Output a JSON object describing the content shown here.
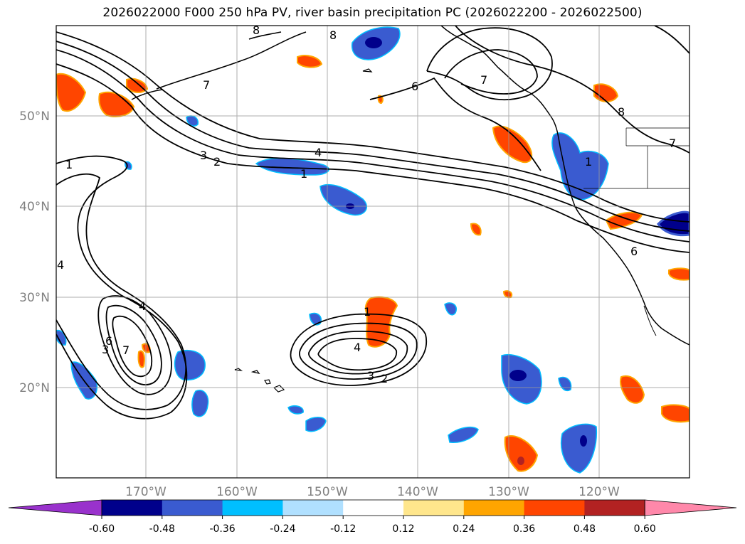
{
  "title": "2026022000 F000 250 hPa PV, river basin precipitation PC (2026022200 - 2026022500)",
  "map": {
    "lat_labels": [
      "50°N",
      "40°N",
      "30°N",
      "20°N"
    ],
    "lon_labels": [
      "170°W",
      "160°W",
      "150°W",
      "140°W",
      "130°W",
      "120°W"
    ],
    "label_color": "#808080",
    "grid": true,
    "pv_contour_labels": [
      "1",
      "7",
      "6",
      "8",
      "8",
      "3",
      "2",
      "4",
      "1",
      "7",
      "4",
      "4",
      "6",
      "3",
      "7",
      "1",
      "4",
      "3",
      "2",
      "6",
      "1",
      "8",
      "7"
    ]
  },
  "colorbar": {
    "ticks": [
      "-0.60",
      "-0.48",
      "-0.36",
      "-0.24",
      "-0.12",
      "0.12",
      "0.24",
      "0.36",
      "0.48",
      "0.60"
    ],
    "colors": [
      "#9932cc",
      "#00008b",
      "#3a5bd0",
      "#00bfff",
      "#b0e0ff",
      "#ffffff",
      "#ffe68c",
      "#ffa500",
      "#ff4500",
      "#b22222",
      "#ff88aa"
    ]
  }
}
